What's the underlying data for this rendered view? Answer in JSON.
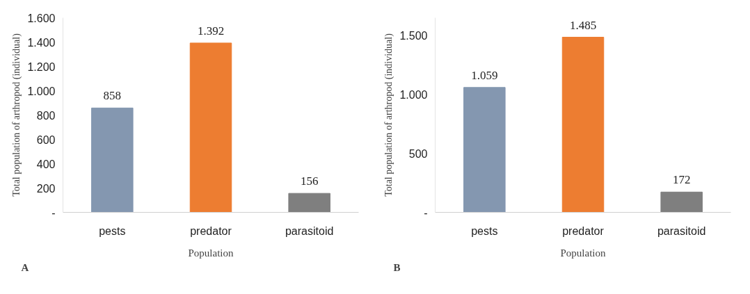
{
  "chart_data": [
    {
      "type": "bar",
      "categories": [
        "pests",
        "predator",
        "parasitoid"
      ],
      "values": [
        858,
        1392,
        156
      ],
      "colors": [
        "#8497b0",
        "#ed7d31",
        "#7f7f7f"
      ],
      "value_labels": [
        "858",
        "1.392",
        "156"
      ],
      "ylim": [
        0,
        1600
      ],
      "yticks": [
        {
          "value": 0,
          "label": "-"
        },
        200,
        400,
        600,
        800,
        {
          "value": 1000,
          "label": "1.000"
        },
        {
          "value": 1200,
          "label": "1.200"
        },
        {
          "value": 1400,
          "label": "1.400"
        },
        {
          "value": 1600,
          "label": "1.600"
        }
      ],
      "ylabel": "Total population of arthropod (individual)",
      "xlabel": "Population",
      "annotations": [
        "A"
      ],
      "grid": false
    },
    {
      "type": "bar",
      "categories": [
        "pests",
        "predator",
        "parasitoid"
      ],
      "values": [
        1059,
        1485,
        172
      ],
      "colors": [
        "#8497b0",
        "#ed7d31",
        "#7f7f7f"
      ],
      "value_labels": [
        "1.059",
        "1.485",
        "172"
      ],
      "ylim": [
        0,
        1650
      ],
      "yticks": [
        {
          "value": 0,
          "label": "-"
        },
        500,
        {
          "value": 1000,
          "label": "1.000"
        },
        {
          "value": 1500,
          "label": "1.500"
        }
      ],
      "ylabel": "Total population of arthropod (individual)",
      "xlabel": "Population",
      "annotations": [
        "B"
      ],
      "grid": false
    }
  ]
}
